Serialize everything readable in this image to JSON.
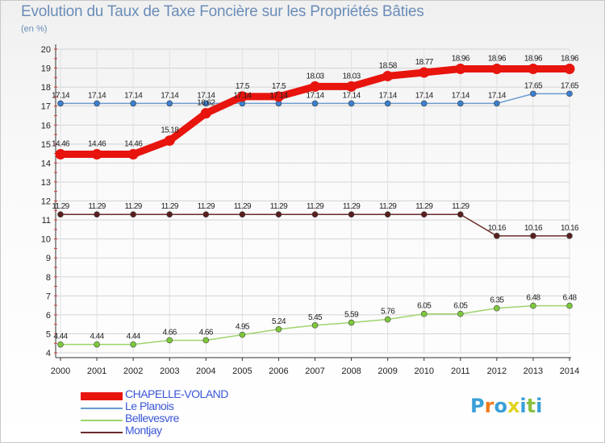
{
  "title": "Evolution du Taux de Taxe Foncière sur les Propriétés Bâties",
  "unit_label": "(en %)",
  "logo": {
    "text": "Proxiti",
    "colors": [
      "#3aa0d8",
      "#f07a1a",
      "#3aa0d8",
      "#e2d21e",
      "#3aa0d8",
      "#8ac040",
      "#3aa0d8"
    ]
  },
  "chart_data": {
    "type": "line",
    "title": "Evolution du Taux de Taxe Foncière sur les Propriétés Bâties",
    "ylabel": "(en %)",
    "xlabel": "",
    "ylim": [
      4,
      20
    ],
    "yticks": [
      "4",
      "5",
      "6",
      "7",
      "8",
      "9",
      "10",
      "11",
      "12",
      "13",
      "14",
      "15",
      "16",
      "17",
      "18",
      "19",
      "20"
    ],
    "categories": [
      "2000",
      "2001",
      "2002",
      "2003",
      "2004",
      "2005",
      "2006",
      "2007",
      "2008",
      "2009",
      "2010",
      "2011",
      "2012",
      "2013",
      "2014"
    ],
    "grid": true,
    "series": [
      {
        "name": "CHAPELLE-VOLAND",
        "color": "#e8140e",
        "marker": "#e8140e",
        "values": [
          14.46,
          14.46,
          14.46,
          15.18,
          16.62,
          17.5,
          17.5,
          18.03,
          18.03,
          18.58,
          18.77,
          18.96,
          18.96,
          18.96,
          18.96
        ],
        "labels": [
          "14.46",
          "14.46",
          "14.46",
          "15.18",
          "16.62",
          "17.5",
          "17.5",
          "18.03",
          "18.03",
          "18.58",
          "18.77",
          "18.96",
          "18.96",
          "18.96",
          "18.96"
        ]
      },
      {
        "name": "Le Planois",
        "color": "#6b9bd1",
        "marker": "#3a7fd0",
        "values": [
          17.14,
          17.14,
          17.14,
          17.14,
          17.14,
          17.14,
          17.14,
          17.14,
          17.14,
          17.14,
          17.14,
          17.14,
          17.14,
          17.65,
          17.65
        ],
        "labels": [
          "17.14",
          "17.14",
          "17.14",
          "17.14",
          "17.14",
          "17.14",
          "17.14",
          "17.14",
          "17.14",
          "17.14",
          "17.14",
          "17.14",
          "17.14",
          "17.65",
          "17.65"
        ]
      },
      {
        "name": "Bellevesvre",
        "color": "#9ed46c",
        "marker": "#7cc83a",
        "values": [
          4.44,
          4.44,
          4.44,
          4.66,
          4.66,
          4.95,
          5.24,
          5.45,
          5.59,
          5.76,
          6.05,
          6.05,
          6.35,
          6.48,
          6.48
        ],
        "labels": [
          "4.44",
          "4.44",
          "4.44",
          "4.66",
          "4.66",
          "4.95",
          "5.24",
          "5.45",
          "5.59",
          "5.76",
          "6.05",
          "6.05",
          "6.35",
          "6.48",
          "6.48"
        ]
      },
      {
        "name": "Montjay",
        "color": "#6b2a2a",
        "marker": "#5a1e1e",
        "values": [
          11.29,
          11.29,
          11.29,
          11.29,
          11.29,
          11.29,
          11.29,
          11.29,
          11.29,
          11.29,
          11.29,
          11.29,
          10.16,
          10.16,
          10.16
        ],
        "labels": [
          "11.29",
          "11.29",
          "11.29",
          "11.29",
          "11.29",
          "11.29",
          "11.29",
          "11.29",
          "11.29",
          "11.29",
          "11.29",
          "11.29",
          "10.16",
          "10.16",
          "10.16"
        ]
      }
    ],
    "legend": [
      "CHAPELLE-VOLAND",
      "Le Planois",
      "Bellevesvre",
      "Montjay"
    ],
    "legend_position": "bottom-left"
  }
}
